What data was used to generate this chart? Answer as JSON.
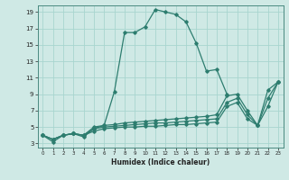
{
  "xlabel": "Humidex (Indice chaleur)",
  "xlim": [
    -0.5,
    23.5
  ],
  "ylim": [
    2.5,
    19.8
  ],
  "xticks": [
    0,
    1,
    2,
    3,
    4,
    5,
    6,
    7,
    8,
    9,
    10,
    11,
    12,
    13,
    14,
    15,
    16,
    17,
    18,
    19,
    20,
    21,
    22,
    23
  ],
  "yticks": [
    3,
    5,
    7,
    9,
    11,
    13,
    15,
    17,
    19
  ],
  "line_color": "#2d7d6f",
  "bg_color": "#cfe9e5",
  "grid_color": "#a8d5cf",
  "line1_x": [
    0,
    1,
    2,
    3,
    4,
    5,
    6,
    7,
    8,
    9,
    10,
    11,
    12,
    13,
    14,
    15,
    16,
    17,
    18
  ],
  "line1_y": [
    4.0,
    3.2,
    4.0,
    4.2,
    3.8,
    4.8,
    5.2,
    9.3,
    16.5,
    16.5,
    17.2,
    19.3,
    19.0,
    18.7,
    17.8,
    15.2,
    11.8,
    12.0,
    9.0
  ],
  "line2_x": [
    0,
    1,
    2,
    3,
    4,
    5,
    6,
    7,
    8,
    9,
    10,
    11,
    12,
    13,
    14,
    15,
    16,
    17,
    18,
    19,
    20,
    21,
    22,
    23
  ],
  "line2_y": [
    4.0,
    3.5,
    4.0,
    4.2,
    4.0,
    5.0,
    5.2,
    5.3,
    5.5,
    5.6,
    5.7,
    5.8,
    5.9,
    6.0,
    6.1,
    6.2,
    6.3,
    6.5,
    8.8,
    9.0,
    7.0,
    5.2,
    9.5,
    10.5
  ],
  "line3_x": [
    0,
    1,
    2,
    3,
    4,
    5,
    6,
    7,
    8,
    9,
    10,
    11,
    12,
    13,
    14,
    15,
    16,
    17,
    18,
    19,
    20,
    21,
    22,
    23
  ],
  "line3_y": [
    4.0,
    3.5,
    4.0,
    4.2,
    4.0,
    4.8,
    5.0,
    5.1,
    5.2,
    5.3,
    5.4,
    5.5,
    5.5,
    5.6,
    5.7,
    5.8,
    5.9,
    6.0,
    8.0,
    8.5,
    6.5,
    5.2,
    8.5,
    10.5
  ],
  "line4_x": [
    0,
    1,
    2,
    3,
    4,
    5,
    6,
    7,
    8,
    9,
    10,
    11,
    12,
    13,
    14,
    15,
    16,
    17,
    18,
    19,
    20,
    21,
    22,
    23
  ],
  "line4_y": [
    4.0,
    3.5,
    4.0,
    4.2,
    4.0,
    4.5,
    4.8,
    4.9,
    5.0,
    5.0,
    5.1,
    5.1,
    5.2,
    5.3,
    5.3,
    5.4,
    5.5,
    5.6,
    7.5,
    8.0,
    6.0,
    5.2,
    7.5,
    10.5
  ]
}
